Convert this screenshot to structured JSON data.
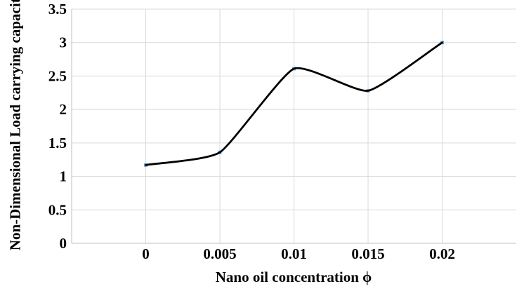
{
  "chart_data": {
    "type": "line",
    "smooth": true,
    "title": "",
    "xlabel": "Nano oil concentration ϕ",
    "ylabel": "Non-Dimensional Load carrying capacity",
    "x": [
      0,
      0.005,
      0.01,
      0.015,
      0.02
    ],
    "y": [
      1.17,
      1.36,
      2.61,
      2.28,
      3.0
    ],
    "series": [
      {
        "name": "Non-Dimensional Load carrying capacity",
        "values": [
          1.17,
          1.36,
          2.61,
          2.28,
          3.0
        ]
      }
    ],
    "xlim": [
      -0.005,
      0.025
    ],
    "ylim": [
      0,
      3.5
    ],
    "x_ticks": [
      0,
      0.005,
      0.01,
      0.015,
      0.02
    ],
    "x_tick_labels": [
      "0",
      "0.005",
      "0.01",
      "0.015",
      "0.02"
    ],
    "y_ticks": [
      0,
      0.5,
      1,
      1.5,
      2,
      2.5,
      3,
      3.5
    ],
    "y_tick_labels": [
      "0",
      "0.5",
      "1",
      "1.5",
      "2",
      "2.5",
      "3",
      "3.5"
    ],
    "grid": true,
    "legend": false,
    "colors": {
      "line": "#000000",
      "marker": "#6FA8DC",
      "gridline": "#D9D9D9",
      "axis_line": "#BFBFBF",
      "text": "#000000",
      "background": "#FFFFFF"
    }
  }
}
